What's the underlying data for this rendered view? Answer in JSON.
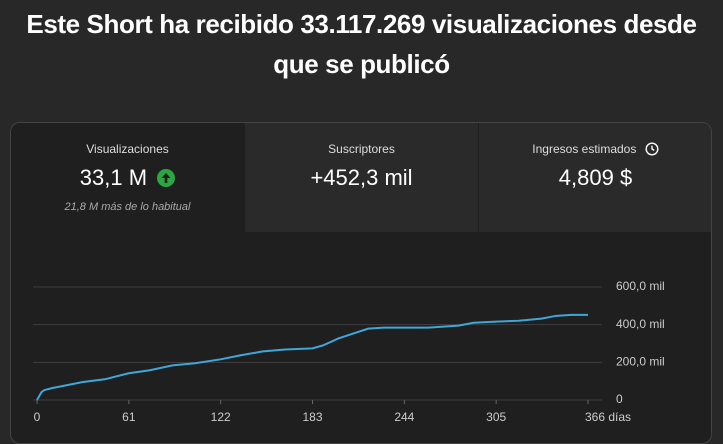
{
  "header": {
    "title": "Este Short ha recibido 33.117.269 visualizaciones desde que se publicó"
  },
  "cards": [
    {
      "label": "Visualizaciones",
      "value": "33,1 M",
      "note": "21,8 M más de lo habitual"
    },
    {
      "label": "Suscriptores",
      "value": "+452,3 mil"
    },
    {
      "label": "Ingresos estimados",
      "value": "4,809 $"
    }
  ],
  "chart_data": {
    "type": "line",
    "x": [
      0,
      3,
      5,
      10,
      30,
      45,
      61,
      75,
      90,
      105,
      122,
      135,
      150,
      165,
      183,
      190,
      200,
      210,
      220,
      230,
      244,
      260,
      280,
      290,
      305,
      320,
      335,
      345,
      355,
      366
    ],
    "series": [
      {
        "color": "#3ea6d8",
        "values": [
          0,
          42000,
          53000,
          63000,
          95000,
          110000,
          142000,
          158000,
          184000,
          195000,
          216000,
          237000,
          258000,
          268000,
          274000,
          290000,
          326000,
          353000,
          379000,
          384000,
          384000,
          384000,
          395000,
          410000,
          416000,
          421000,
          432000,
          447000,
          452000,
          452000
        ]
      }
    ],
    "xlim": [
      0,
      366
    ],
    "xticks": [
      0,
      61,
      122,
      183,
      244,
      305,
      {
        "value": 366,
        "label": "366 días"
      }
    ],
    "ylim": [
      0,
      600000
    ],
    "yticks": [
      0,
      {
        "value": 200000,
        "label": "200,0 mil"
      },
      {
        "value": 400000,
        "label": "400,0 mil"
      },
      {
        "value": 600000,
        "label": "600,0 mil"
      }
    ],
    "grid": true
  }
}
